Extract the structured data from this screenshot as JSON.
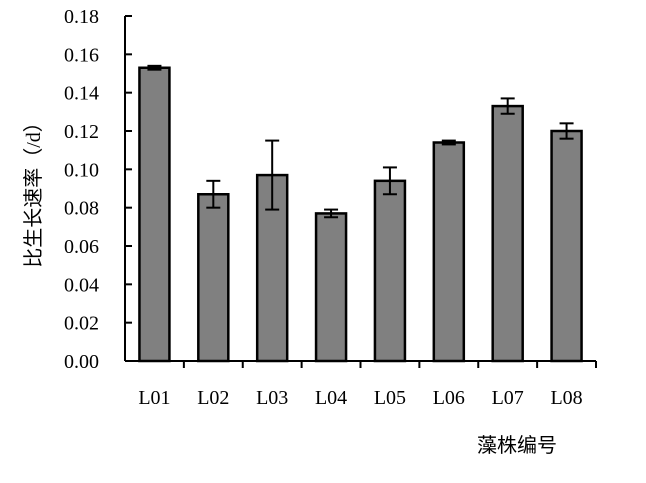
{
  "chart_data": {
    "type": "bar",
    "title": "",
    "xlabel": "藻株编号",
    "ylabel": "比生长速率（/d）",
    "categories": [
      "L01",
      "L02",
      "L03",
      "L04",
      "L05",
      "L06",
      "L07",
      "L08"
    ],
    "values": [
      0.153,
      0.087,
      0.097,
      0.077,
      0.094,
      0.114,
      0.133,
      0.12
    ],
    "error": [
      0.001,
      0.007,
      0.018,
      0.002,
      0.007,
      0.001,
      0.004,
      0.004
    ],
    "ylim": [
      0,
      0.18
    ],
    "yticks": [
      "0.00",
      "0.02",
      "0.04",
      "0.06",
      "0.08",
      "0.10",
      "0.12",
      "0.14",
      "0.16",
      "0.18"
    ],
    "grid": false,
    "bar_color": "#808080",
    "bar_stroke": "#000000"
  }
}
